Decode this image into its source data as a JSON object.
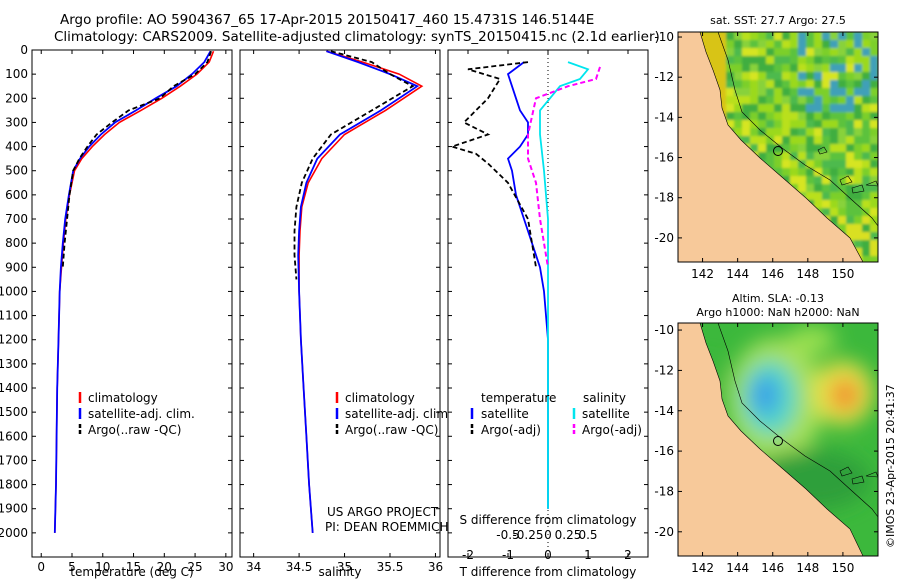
{
  "header": {
    "line1": "Argo profile: AO 5904367_65 17-Apr-2015 20150417_460 15.4731S 146.5144E",
    "line2": "Climatology: CARS2009. Satellite-adjusted climatology: synTS_20150415.nc (2.1d earlier)"
  },
  "colors": {
    "climatology": "#ff0000",
    "satellite": "#0000ff",
    "argo": "#000000",
    "sal_satellite": "#00e5ee",
    "sal_argo": "#ff00ff",
    "land": "#f7c99a"
  },
  "panels": {
    "temperature": {
      "xlabel": "temperature (deg C)",
      "xticks": [
        "0",
        "5",
        "10",
        "15",
        "20",
        "25",
        "30"
      ],
      "yticks": [
        "0",
        "100",
        "200",
        "300",
        "400",
        "500",
        "600",
        "700",
        "800",
        "900",
        "1000",
        "1100",
        "1200",
        "1300",
        "1400",
        "1500",
        "1600",
        "1700",
        "1800",
        "1900",
        "2000"
      ],
      "legend": [
        "climatology",
        "satellite-adj. clim.",
        "Argo(..raw -QC)"
      ]
    },
    "salinity": {
      "xlabel": "salinity",
      "xticks": [
        "34",
        "34.5",
        "35",
        "35.5",
        "36"
      ],
      "legend": [
        "climatology",
        "satellite-adj. clim.",
        "Argo(..raw -QC)"
      ],
      "note1": "US ARGO PROJECT",
      "note2": "PI: DEAN ROEMMICH"
    },
    "difference": {
      "xlabel": "T difference from climatology",
      "xlabel_top": "S difference from climatology",
      "xticks_t": [
        "-2",
        "-1",
        "0",
        "1",
        "2"
      ],
      "xticks_s": [
        "-0.5",
        "-0.25",
        "0",
        "0.25",
        "0.5"
      ],
      "legend_t_title": "temperature",
      "legend_s_title": "salinity",
      "legend_items": [
        "satellite",
        "Argo(-adj)",
        "satellite",
        "Argo(-adj)"
      ]
    },
    "map_sst": {
      "title": "sat. SST: 27.7  Argo: 27.5",
      "yticks": [
        "-10",
        "-12",
        "-14",
        "-16",
        "-18",
        "-20"
      ],
      "xticks": [
        "142",
        "144",
        "146",
        "148",
        "150"
      ]
    },
    "map_sla": {
      "title1": "Altim. SLA: -0.13",
      "title2": "Argo h1000: NaN h2000: NaN",
      "yticks": [
        "-10",
        "-12",
        "-14",
        "-16",
        "-18",
        "-20"
      ],
      "xticks": [
        "142",
        "144",
        "146",
        "148",
        "150"
      ]
    }
  },
  "side_stamp": "©IMOS 23-Apr-2015 20:41:37",
  "chart_data": [
    {
      "type": "line",
      "xlabel": "temperature (deg C)",
      "ylabel": "",
      "xlim": [
        -1.5,
        31
      ],
      "ylim": [
        2100,
        0
      ],
      "series": [
        {
          "name": "climatology",
          "x": [
            28.0,
            27.3,
            25.3,
            22.6,
            19.6,
            16.2,
            12.7,
            10.3,
            8.3,
            6.6,
            5.4,
            4.6,
            4.0,
            3.6,
            3.3,
            3.0,
            2.8,
            2.6,
            2.5,
            2.4,
            2.3,
            2.2
          ],
          "y": [
            5,
            50,
            100,
            150,
            200,
            250,
            300,
            350,
            400,
            450,
            500,
            600,
            700,
            800,
            900,
            1000,
            1200,
            1400,
            1600,
            1800,
            1900,
            2000
          ]
        },
        {
          "name": "satellite-adj. clim.",
          "x": [
            27.5,
            26.5,
            24.5,
            22.0,
            18.6,
            15.4,
            12.0,
            9.7,
            7.8,
            6.3,
            5.2,
            4.5,
            3.9,
            3.5,
            3.2,
            3.0,
            2.8,
            2.6,
            2.5,
            2.4,
            2.3,
            2.2
          ],
          "y": [
            5,
            50,
            100,
            150,
            200,
            250,
            300,
            350,
            400,
            450,
            500,
            600,
            700,
            800,
            900,
            1000,
            1200,
            1400,
            1600,
            1800,
            1900,
            2000
          ]
        },
        {
          "name": "Argo(..raw -QC)",
          "x": [
            27.6,
            27.0,
            25.0,
            21.5,
            19.3,
            14.2,
            11.5,
            9.0,
            7.5,
            6.2,
            5.2,
            4.6,
            4.2,
            3.8,
            3.5
          ],
          "y": [
            5,
            50,
            100,
            150,
            200,
            250,
            300,
            350,
            400,
            450,
            500,
            600,
            700,
            800,
            900
          ]
        }
      ]
    },
    {
      "type": "line",
      "xlabel": "salinity",
      "ylabel": "",
      "xlim": [
        33.85,
        36.05
      ],
      "ylim": [
        2100,
        0
      ],
      "series": [
        {
          "name": "climatology",
          "x": [
            34.8,
            35.2,
            35.6,
            35.85,
            35.45,
            35.0,
            34.75,
            34.6,
            34.53,
            34.51,
            34.5,
            34.5,
            34.52,
            34.55,
            34.58,
            34.61,
            34.63,
            34.65
          ],
          "y": [
            5,
            50,
            100,
            150,
            250,
            350,
            450,
            550,
            650,
            750,
            850,
            1000,
            1200,
            1400,
            1600,
            1800,
            1900,
            2000
          ]
        },
        {
          "name": "satellite-adj. clim.",
          "x": [
            34.8,
            35.15,
            35.5,
            35.8,
            35.4,
            34.95,
            34.7,
            34.58,
            34.52,
            34.5,
            34.49,
            34.5,
            34.52,
            34.55,
            34.58,
            34.61,
            34.63,
            34.65
          ],
          "y": [
            5,
            50,
            100,
            150,
            250,
            350,
            450,
            550,
            650,
            750,
            850,
            1000,
            1200,
            1400,
            1600,
            1800,
            1900,
            2000
          ]
        },
        {
          "name": "Argo(..raw -QC)",
          "x": [
            34.85,
            35.3,
            35.5,
            35.75,
            35.3,
            34.85,
            34.65,
            34.53,
            34.47,
            34.45,
            34.45,
            34.47
          ],
          "y": [
            5,
            50,
            100,
            150,
            250,
            350,
            450,
            550,
            650,
            750,
            850,
            950
          ]
        }
      ]
    },
    {
      "type": "line",
      "xlabel": "T difference from climatology",
      "ylabel": "",
      "xlim": [
        -2.5,
        2.5
      ],
      "ylim": [
        2100,
        0
      ],
      "series": [
        {
          "name": "satellite",
          "x": [
            -0.6,
            -1.0,
            -0.9,
            -0.8,
            -0.7,
            -0.5,
            -0.5,
            -0.7,
            -1.0,
            -0.9,
            -0.8,
            -0.6,
            -0.4,
            -0.2,
            -0.1,
            0.0,
            0.0,
            0.0
          ],
          "y": [
            50,
            100,
            150,
            200,
            250,
            300,
            350,
            400,
            450,
            500,
            600,
            700,
            800,
            900,
            1000,
            1200,
            1500,
            1900
          ]
        },
        {
          "name": "Argo(-adj)",
          "x": [
            -0.5,
            -2.0,
            -1.2,
            -1.5,
            -2.1,
            -1.5,
            -2.4,
            -1.8,
            -1.5,
            -1.0,
            -0.5,
            -0.3
          ],
          "y": [
            50,
            80,
            120,
            200,
            300,
            350,
            400,
            430,
            470,
            550,
            700,
            900
          ]
        },
        {
          "name": "satellite",
          "x": [
            0.5,
            1.0,
            0.8,
            0.3,
            -0.2,
            -0.2,
            -0.1,
            0.0,
            0.0,
            0.0,
            0.0,
            0.0
          ],
          "y": [
            50,
            80,
            120,
            150,
            250,
            350,
            500,
            700,
            900,
            1200,
            1600,
            1900
          ]
        },
        {
          "name": "Argo(-adj)",
          "x": [
            1.3,
            1.2,
            0.5,
            -0.3,
            -0.5,
            -0.5,
            -0.3,
            -0.2,
            -0.1,
            0.0
          ],
          "y": [
            70,
            120,
            150,
            200,
            350,
            450,
            550,
            700,
            800,
            900
          ]
        }
      ]
    }
  ]
}
